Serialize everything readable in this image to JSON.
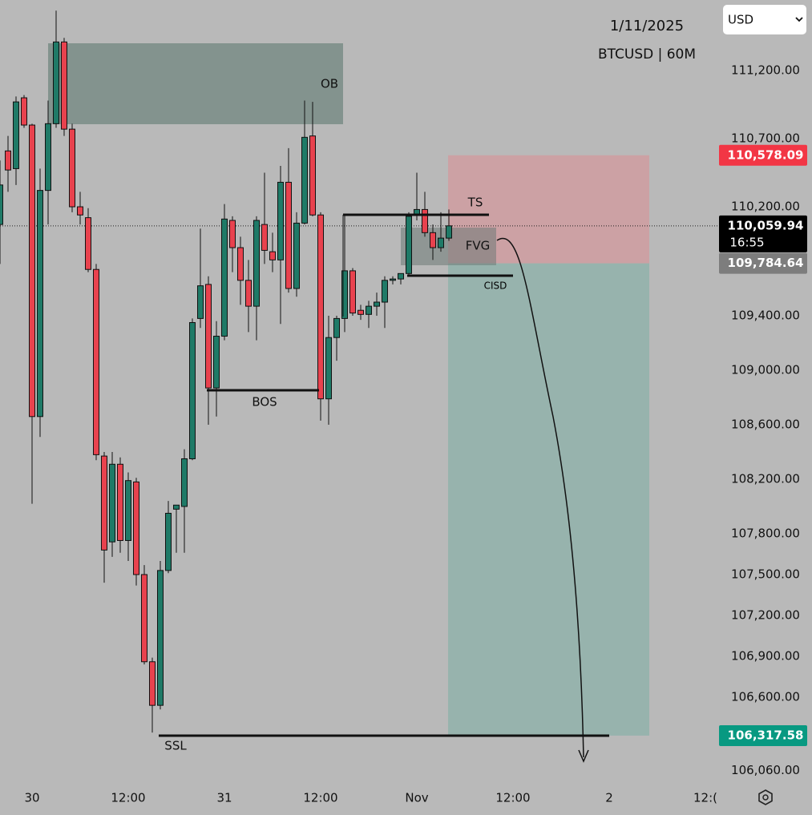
{
  "header": {
    "date": "1/11/2025",
    "symbol": "BTCUSD | 60M",
    "currency": "USD"
  },
  "chart_data": {
    "type": "candlestick",
    "x": [
      -4,
      -3,
      -2,
      -1,
      0,
      1,
      2,
      3,
      4,
      5,
      6,
      7,
      8,
      9,
      10,
      11,
      12,
      13,
      14,
      15,
      16,
      17,
      18,
      19,
      20,
      21,
      22,
      23,
      24,
      25,
      26,
      27,
      28,
      29,
      30,
      31,
      32,
      33,
      34,
      35,
      36,
      37,
      38,
      39,
      40,
      41,
      42,
      43,
      44,
      45,
      46,
      47,
      48,
      49,
      50,
      51,
      52
    ],
    "open": [
      110070,
      110610,
      110480,
      111000,
      110800,
      108660,
      110320,
      110810,
      111410,
      110770,
      110200,
      110120,
      109740,
      108370,
      107740,
      108310,
      107750,
      108180,
      107500,
      106860,
      106540,
      107530,
      107980,
      108000,
      108350,
      109380,
      109630,
      108870,
      109250,
      110100,
      109900,
      109660,
      109470,
      110070,
      109870,
      109810,
      110380,
      109600,
      110080,
      110720,
      110140,
      108790,
      109240,
      109380,
      109730,
      109440,
      109410,
      109470,
      109500,
      109660,
      109670,
      109710,
      110140,
      110180,
      110010,
      109900,
      109970
    ],
    "high": [
      110540,
      110720,
      111010,
      111020,
      110810,
      110480,
      110980,
      111640,
      111440,
      110810,
      110310,
      110190,
      109780,
      108400,
      108400,
      108360,
      108250,
      108210,
      107570,
      106890,
      107600,
      108040,
      108010,
      108420,
      109380,
      110040,
      109690,
      109360,
      110220,
      110130,
      109980,
      109810,
      110130,
      110450,
      110010,
      110500,
      110630,
      110160,
      110980,
      110970,
      110160,
      109400,
      109400,
      110140,
      109750,
      109480,
      109510,
      109570,
      109690,
      109690,
      109710,
      110160,
      110450,
      110310,
      110070,
      110160,
      110180
    ],
    "low": [
      109780,
      110310,
      110360,
      110780,
      108020,
      108510,
      110070,
      110780,
      110720,
      110160,
      110070,
      109720,
      108340,
      107440,
      107630,
      107660,
      107600,
      107420,
      106840,
      106340,
      106510,
      107510,
      107660,
      107660,
      108340,
      109310,
      108600,
      108660,
      109220,
      109720,
      109480,
      109280,
      109220,
      109780,
      109720,
      109340,
      109570,
      109540,
      110070,
      110130,
      108630,
      108600,
      109070,
      109280,
      109400,
      109370,
      109310,
      109400,
      109310,
      109630,
      109630,
      109690,
      110100,
      109980,
      109810,
      109870,
      109950
    ],
    "close": [
      110360,
      110470,
      110970,
      110800,
      108660,
      110320,
      110810,
      111410,
      110770,
      110200,
      110140,
      109740,
      108380,
      107680,
      108310,
      107750,
      108190,
      107500,
      106860,
      106540,
      107530,
      107950,
      108010,
      108350,
      109350,
      109620,
      108870,
      109250,
      110110,
      109900,
      109660,
      109470,
      110100,
      109880,
      109810,
      110380,
      109600,
      110080,
      110710,
      110140,
      108790,
      109240,
      109380,
      109730,
      109420,
      109410,
      109470,
      109500,
      109660,
      109670,
      109710,
      110130,
      110180,
      110010,
      109900,
      109970,
      110060
    ],
    "up_color": "#1f7a67",
    "down_color": "#e8424e",
    "xlim": [
      -4,
      85.5
    ],
    "xticks": [
      {
        "value": 0,
        "label": "30"
      },
      {
        "value": 12,
        "label": "12:00"
      },
      {
        "value": 24,
        "label": "31"
      },
      {
        "value": 36,
        "label": "12:00"
      },
      {
        "value": 48,
        "label": "Nov"
      },
      {
        "value": 60,
        "label": "12:00"
      },
      {
        "value": 72,
        "label": "2"
      },
      {
        "value": 84,
        "label": "12:("
      }
    ],
    "ylim": [
      105982,
      111718
    ],
    "yticks": [
      {
        "value": 111200,
        "label": "111,200.00"
      },
      {
        "value": 110700,
        "label": "110,700.00"
      },
      {
        "value": 110200,
        "label": "110,200.00"
      },
      {
        "value": 109400,
        "label": "109,400.00"
      },
      {
        "value": 109000,
        "label": "109,000.00"
      },
      {
        "value": 108600,
        "label": "108,600.00"
      },
      {
        "value": 108200,
        "label": "108,200.00"
      },
      {
        "value": 107800,
        "label": "107,800.00"
      },
      {
        "value": 107500,
        "label": "107,500.00"
      },
      {
        "value": 107200,
        "label": "107,200.00"
      },
      {
        "value": 106900,
        "label": "106,900.00"
      },
      {
        "value": 106600,
        "label": "106,600.00"
      },
      {
        "value": 106060,
        "label": "106,060.00"
      }
    ],
    "price_labels": [
      {
        "value": 110578.09,
        "label": "110,578.09",
        "color": "#f23645"
      },
      {
        "value": 110059.94,
        "label": "110,059.94",
        "color": "#000000"
      },
      {
        "value": 109784.64,
        "label": "109,784.64",
        "color": "#7d7d7d"
      },
      {
        "value": 106317.58,
        "label": "106,317.58",
        "color": "#089981"
      }
    ],
    "countdown": "16:55",
    "annotations": [
      "OB",
      "BOS",
      "TS",
      "FVG",
      "CISD",
      "SSL"
    ]
  }
}
